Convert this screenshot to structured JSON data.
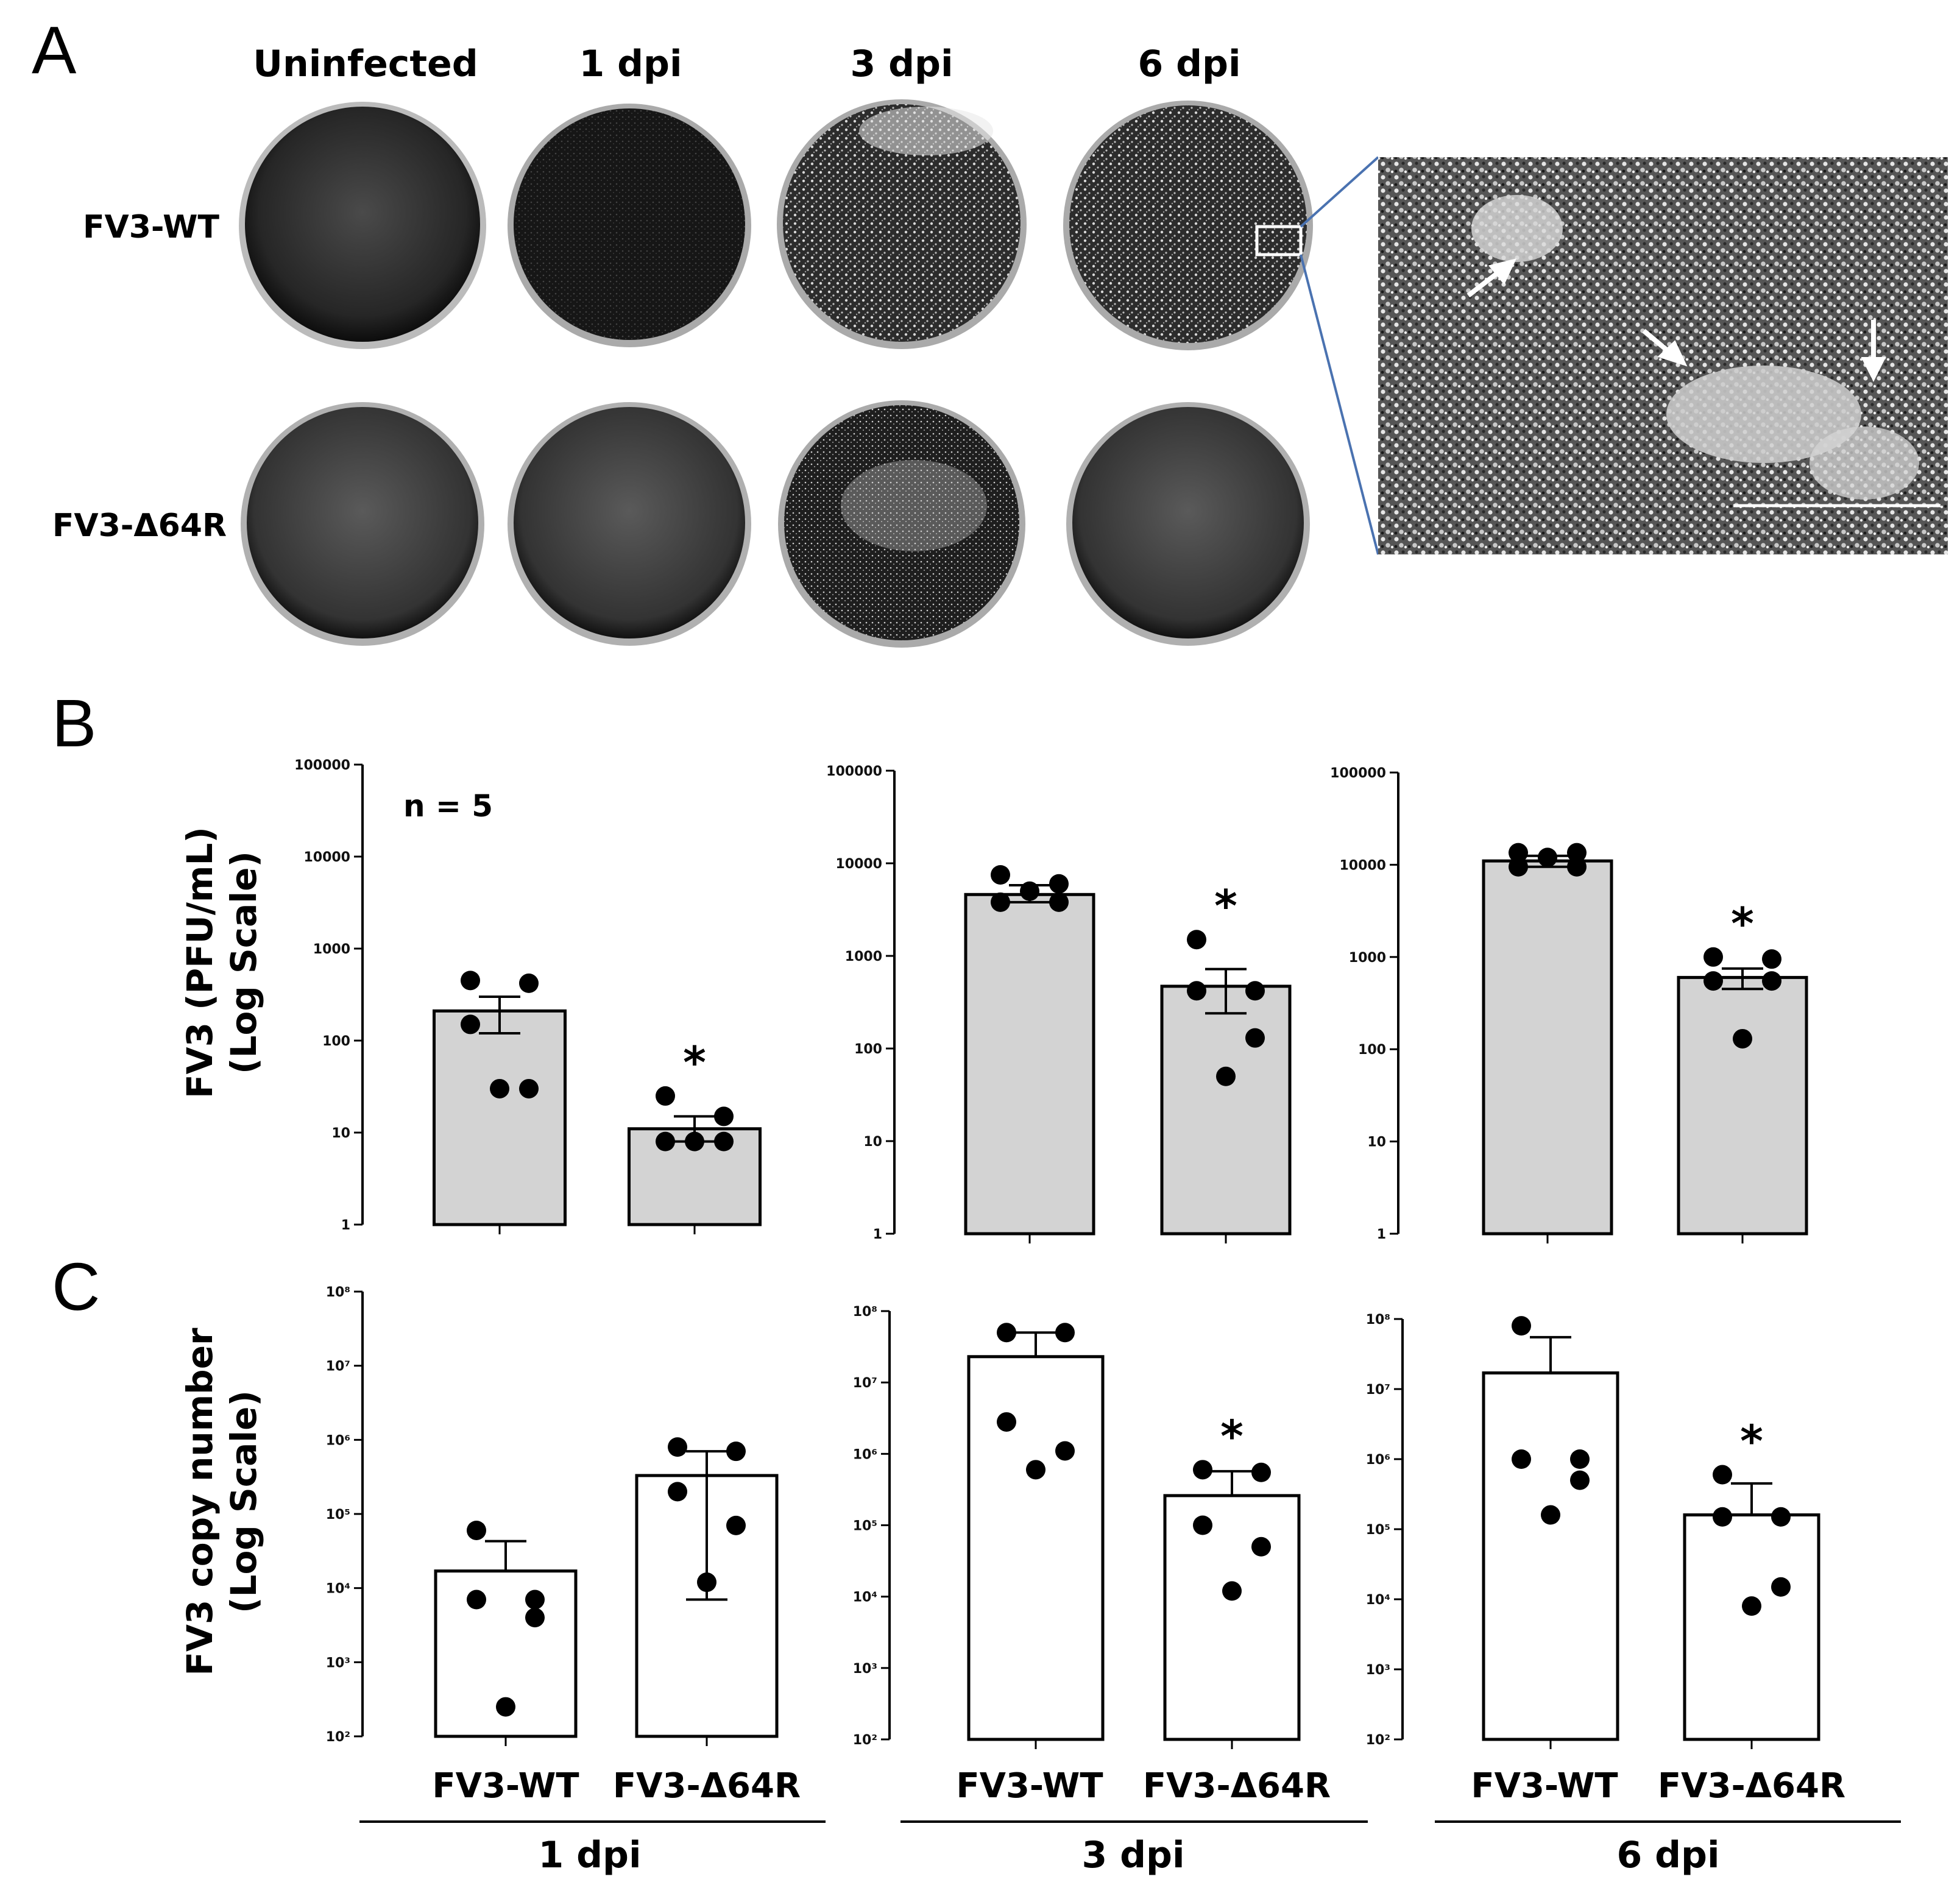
{
  "panel_a": {
    "letter": "A",
    "columns": [
      "Uninfected",
      "1 dpi",
      "3 dpi",
      "6 dpi"
    ],
    "rows": [
      "FV3-WT",
      "FV3-Δ64R"
    ],
    "inset_callout": "6 dpi FV3-WT well, magnified region with plaques (arrows)"
  },
  "panel_b": {
    "letter": "B",
    "ylabel_line1": "FV3 (PFU/mL)",
    "ylabel_line2": "(Log Scale)",
    "annotation": "n = 5",
    "tick_labels": [
      "1",
      "10",
      "100",
      "1000",
      "10000",
      "100000"
    ]
  },
  "panel_c": {
    "letter": "C",
    "ylabel_line1": "FV3 copy number",
    "ylabel_line2": "(Log Scale)",
    "tick_labels": [
      "10²",
      "10³",
      "10⁴",
      "10⁵",
      "10⁶",
      "10⁷",
      "10⁸"
    ]
  },
  "categories": [
    "FV3-WT",
    "FV3-Δ64R"
  ],
  "groups": [
    "1 dpi",
    "3 dpi",
    "6 dpi"
  ],
  "significance_marker": "*",
  "colors": {
    "bar_b": "#d3d3d3",
    "bar_c": "#ffffff",
    "dots": "#000000",
    "callout": "#4a72b0"
  },
  "chart_data": [
    {
      "type": "bar",
      "panel": "B",
      "group": "1 dpi",
      "yscale": "log",
      "ylim": [
        1,
        100000
      ],
      "categories": [
        "FV3-WT",
        "FV3-Δ64R"
      ],
      "values": [
        210,
        11
      ],
      "sem_upper": [
        300,
        15
      ],
      "sem_lower": [
        120,
        8
      ],
      "points": [
        [
          450,
          420,
          150,
          30,
          30
        ],
        [
          25,
          15,
          8,
          8,
          8
        ]
      ],
      "significant": [
        false,
        true
      ]
    },
    {
      "type": "bar",
      "panel": "B",
      "group": "3 dpi",
      "yscale": "log",
      "ylim": [
        1,
        100000
      ],
      "categories": [
        "FV3-WT",
        "FV3-Δ64R"
      ],
      "values": [
        4600,
        470
      ],
      "sem_upper": [
        5800,
        720
      ],
      "sem_lower": [
        3800,
        240
      ],
      "points": [
        [
          7500,
          6000,
          3800,
          3800,
          5000
        ],
        [
          1500,
          420,
          420,
          130,
          50
        ]
      ],
      "significant": [
        false,
        true
      ]
    },
    {
      "type": "bar",
      "panel": "B",
      "group": "6 dpi",
      "yscale": "log",
      "ylim": [
        1,
        100000
      ],
      "categories": [
        "FV3-WT",
        "FV3-Δ64R"
      ],
      "values": [
        11000,
        600
      ],
      "sem_upper": [
        12500,
        750
      ],
      "sem_lower": [
        9500,
        450
      ],
      "points": [
        [
          13500,
          13500,
          9500,
          9500,
          12000
        ],
        [
          1000,
          950,
          550,
          550,
          130
        ]
      ],
      "significant": [
        false,
        true
      ]
    },
    {
      "type": "bar",
      "panel": "C",
      "group": "1 dpi",
      "yscale": "log",
      "ylim": [
        100,
        100000000
      ],
      "categories": [
        "FV3-WT",
        "FV3-Δ64R"
      ],
      "values": [
        17000,
        330000
      ],
      "sem_upper": [
        43000,
        700000
      ],
      "sem_lower": [
        null,
        7000
      ],
      "points": [
        [
          60000,
          7000,
          7000,
          4000,
          250
        ],
        [
          800000,
          700000,
          200000,
          70000,
          12000
        ]
      ],
      "significant": [
        false,
        false
      ]
    },
    {
      "type": "bar",
      "panel": "C",
      "group": "3 dpi",
      "yscale": "log",
      "ylim": [
        100,
        100000000
      ],
      "categories": [
        "FV3-WT",
        "FV3-Δ64R"
      ],
      "values": [
        23000000,
        260000
      ],
      "sem_upper": [
        50000000,
        570000
      ],
      "sem_lower": [
        null,
        null
      ],
      "points": [
        [
          50000000,
          50000000,
          2800000,
          1100000,
          600000
        ],
        [
          600000,
          550000,
          100000,
          50000,
          12000
        ]
      ],
      "significant": [
        false,
        true
      ]
    },
    {
      "type": "bar",
      "panel": "C",
      "group": "6 dpi",
      "yscale": "log",
      "ylim": [
        100,
        100000000
      ],
      "categories": [
        "FV3-WT",
        "FV3-Δ64R"
      ],
      "values": [
        17000000,
        160000
      ],
      "sem_upper": [
        55000000,
        450000
      ],
      "sem_lower": [
        null,
        null
      ],
      "points": [
        [
          80000000,
          1000000,
          1000000,
          500000,
          160000
        ],
        [
          600000,
          150000,
          150000,
          15000,
          8000
        ]
      ],
      "significant": [
        false,
        true
      ]
    }
  ]
}
